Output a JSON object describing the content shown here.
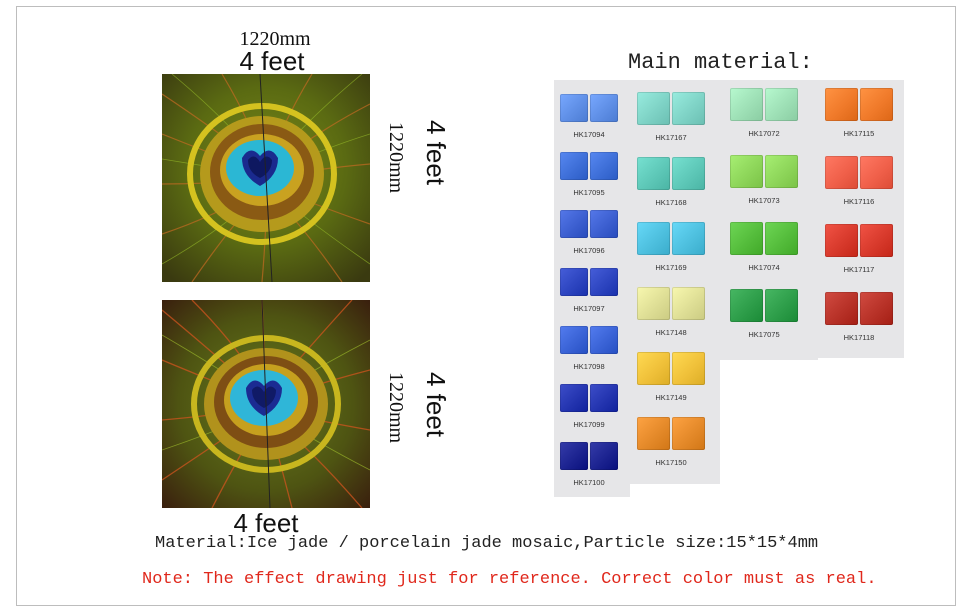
{
  "dimensions": {
    "top_mm": "1220mm",
    "top_ft": "4 feet",
    "bottom_ft": "4 feet",
    "side1_ft": "4 feet",
    "side1_mm": "1220mm",
    "side2_ft": "4 feet",
    "side2_mm": "1220mm"
  },
  "swatches_title": "Main material:",
  "swatch_columns": [
    [
      {
        "code": "HK17094",
        "color": "#5f8fe6"
      },
      {
        "code": "HK17095",
        "color": "#3e6fd8"
      },
      {
        "code": "HK17096",
        "color": "#3c5fd0"
      },
      {
        "code": "HK17097",
        "color": "#2d45c0"
      },
      {
        "code": "HK17098",
        "color": "#3a63d6"
      },
      {
        "code": "HK17099",
        "color": "#2435b0"
      },
      {
        "code": "HK17100",
        "color": "#1c2390"
      }
    ],
    [
      {
        "code": "HK17167",
        "color": "#7fd3c6"
      },
      {
        "code": "HK17168",
        "color": "#5ec8b8"
      },
      {
        "code": "HK17169",
        "color": "#4ec0df"
      },
      {
        "code": "HK17148",
        "color": "#dfdf96"
      },
      {
        "code": "HK17149",
        "color": "#f0c13a"
      },
      {
        "code": "HK17150",
        "color": "#e58a2a"
      }
    ],
    [
      {
        "code": "HK17072",
        "color": "#9ee0b6"
      },
      {
        "code": "HK17073",
        "color": "#8ed65a"
      },
      {
        "code": "HK17074",
        "color": "#55bd3c"
      },
      {
        "code": "HK17075",
        "color": "#2e9e4a"
      }
    ],
    [
      {
        "code": "HK17115",
        "color": "#f07a2a"
      },
      {
        "code": "HK17116",
        "color": "#f0604a"
      },
      {
        "code": "HK17117",
        "color": "#d83a2c"
      },
      {
        "code": "HK17118",
        "color": "#b83228"
      }
    ]
  ],
  "material_text": "Material:Ice jade / porcelain jade mosaic,Particle size:15*15*4mm",
  "note_text": "Note:  The effect drawing just for reference. Correct color must as real."
}
